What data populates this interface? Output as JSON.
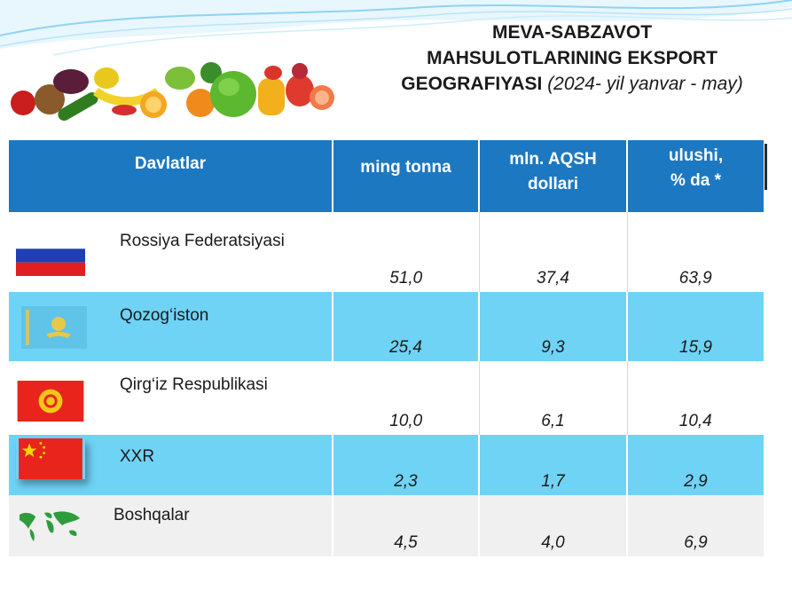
{
  "title": {
    "line1": "MEVA-SABZAVOT",
    "line2": "MAHSULOTLARINING EKSPORT",
    "line3": "GEOGRAFIYASI",
    "period": "(2024- yil yanvar - may)"
  },
  "table": {
    "headers": {
      "country": "Davlatlar",
      "tonnes": "ming tonna",
      "usd_line1": "mln. AQSH",
      "usd_line2": "dollari",
      "share_line1": "ulushi,",
      "share_line2": "% da *"
    },
    "rows": [
      {
        "country": "Rossiya Federatsiyasi",
        "tonnes": "51,0",
        "usd": "37,4",
        "share": "63,9",
        "flag": "russia-flag-icon"
      },
      {
        "country": "Qozog‘iston",
        "tonnes": "25,4",
        "usd": "9,3",
        "share": "15,9",
        "flag": "kazakhstan-flag-icon"
      },
      {
        "country": "Qirg‘iz Respublikasi",
        "tonnes": "10,0",
        "usd": "6,1",
        "share": "10,4",
        "flag": "kyrgyzstan-flag-icon"
      },
      {
        "country": "XXR",
        "tonnes": "2,3",
        "usd": "1,7",
        "share": "2,9",
        "flag": "china-flag-icon"
      },
      {
        "country": "Boshqalar",
        "tonnes": "4,5",
        "usd": "4,0",
        "share": "6,9",
        "flag": "world-map-icon"
      }
    ]
  },
  "colors": {
    "header_blue": "#1c78c1",
    "row_cyan": "#6fd3f6",
    "row_grey": "#f0f0f0"
  }
}
